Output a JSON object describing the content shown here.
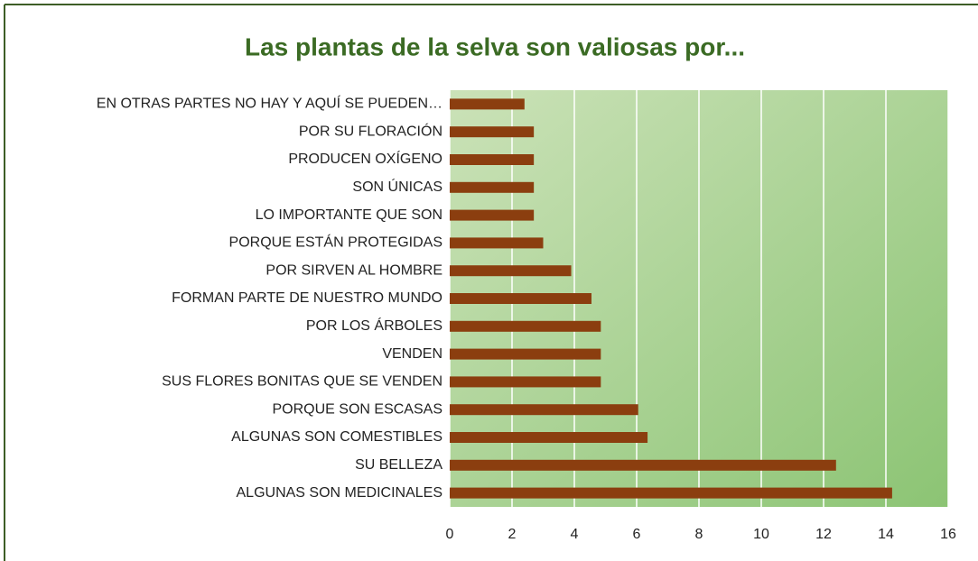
{
  "chart_data": {
    "type": "hbar",
    "title": "Las plantas de la selva son valiosas por...",
    "categories": [
      "EN OTRAS PARTES NO HAY Y AQUÍ SE PUEDEN…",
      "POR SU FLORACIÓN",
      "PRODUCEN OXÍGENO",
      "SON ÚNICAS",
      "LO IMPORTANTE QUE SON",
      "PORQUE ESTÁN PROTEGIDAS",
      "POR SIRVEN AL HOMBRE",
      "FORMAN PARTE DE NUESTRO MUNDO",
      "POR LOS ÁRBOLES",
      "VENDEN",
      "SUS FLORES BONITAS QUE SE VENDEN",
      "PORQUE SON ESCASAS",
      "ALGUNAS SON COMESTIBLES",
      "SU BELLEZA",
      "ALGUNAS SON MEDICINALES"
    ],
    "values": [
      2.4,
      2.7,
      2.7,
      2.7,
      2.7,
      3.0,
      3.9,
      4.55,
      4.85,
      4.85,
      4.85,
      6.05,
      6.35,
      12.4,
      14.2
    ],
    "color": "#8b3e0f",
    "xlim": [
      0,
      16
    ],
    "xticks": [
      0,
      2,
      4,
      6,
      8,
      10,
      12,
      14,
      16
    ],
    "grid": true
  }
}
